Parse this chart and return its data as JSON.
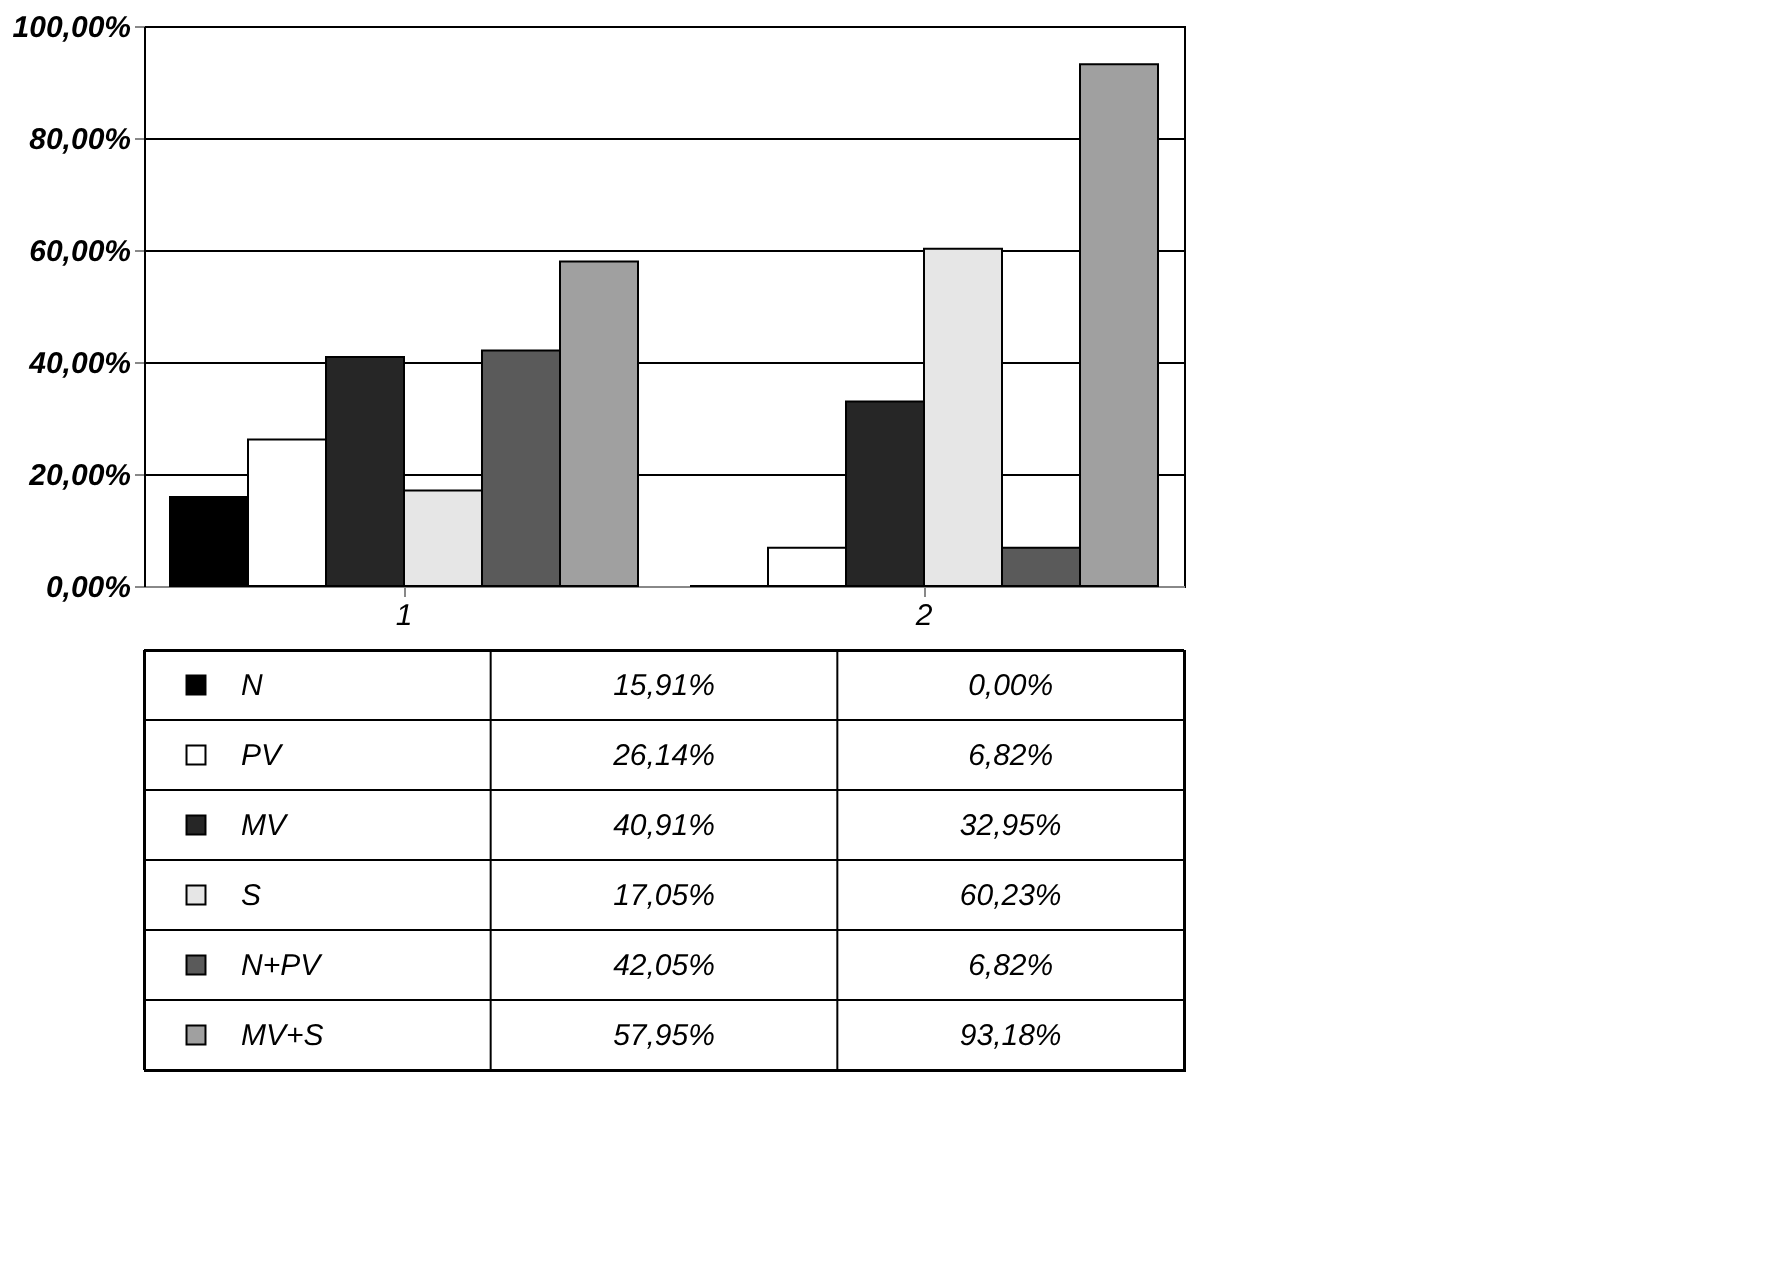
{
  "chart_data": {
    "type": "bar",
    "categories": [
      "1",
      "2"
    ],
    "series": [
      {
        "name": "N",
        "color": "#000000",
        "values": [
          15.91,
          0.0
        ],
        "value_labels": [
          "15,91%",
          "0,00%"
        ]
      },
      {
        "name": "PV",
        "color": "#ffffff",
        "values": [
          26.14,
          6.82
        ],
        "value_labels": [
          "26,14%",
          "6,82%"
        ]
      },
      {
        "name": "MV",
        "color": "#262626",
        "values": [
          40.91,
          32.95
        ],
        "value_labels": [
          "40,91%",
          "32,95%"
        ]
      },
      {
        "name": "S",
        "color": "#e6e6e6",
        "values": [
          17.05,
          60.23
        ],
        "value_labels": [
          "17,05%",
          "60,23%"
        ]
      },
      {
        "name": "N+PV",
        "color": "#5a5a5a",
        "values": [
          42.05,
          6.82
        ],
        "value_labels": [
          "42,05%",
          "6,82%"
        ]
      },
      {
        "name": "MV+S",
        "color": "#a0a0a0",
        "values": [
          57.95,
          93.18
        ],
        "value_labels": [
          "57,95%",
          "93,18%"
        ]
      }
    ],
    "ylim": [
      0,
      100
    ],
    "yticks": [
      {
        "value": 0,
        "label": "0,00%"
      },
      {
        "value": 20,
        "label": "20,00%"
      },
      {
        "value": 40,
        "label": "40,00%"
      },
      {
        "value": 60,
        "label": "60,00%"
      },
      {
        "value": 80,
        "label": "80,00%"
      },
      {
        "value": 100,
        "label": "100,00%"
      }
    ],
    "grid": "y",
    "legend": "bottom"
  }
}
